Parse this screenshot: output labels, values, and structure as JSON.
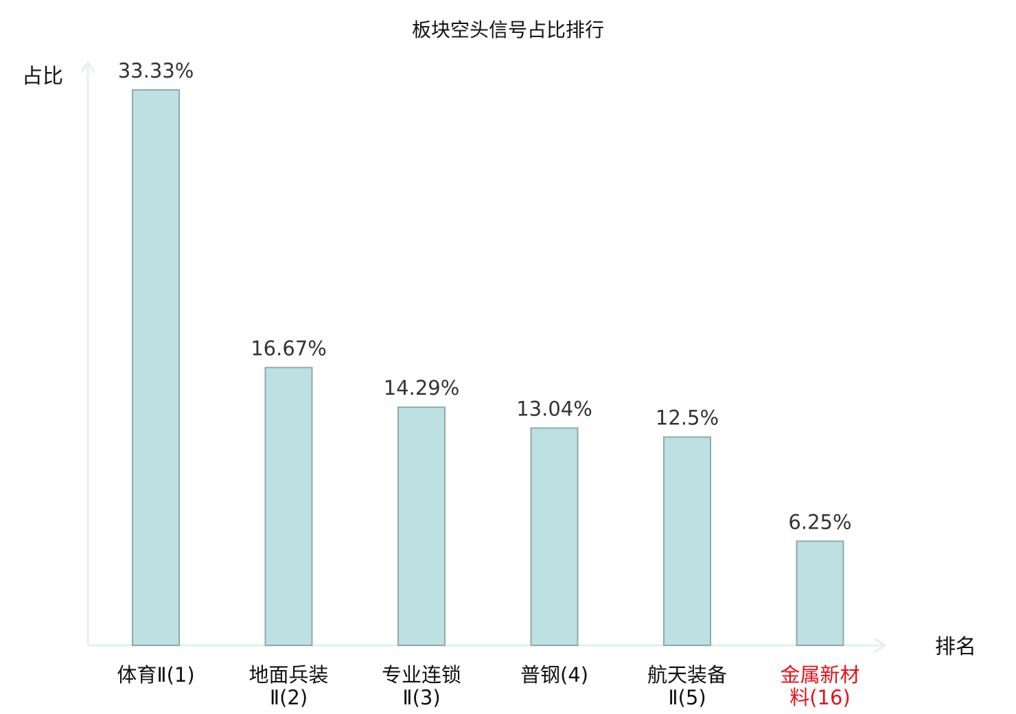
{
  "chart_data": {
    "type": "bar",
    "title": "板块空头信号占比排行",
    "ylabel": "占比",
    "xlabel": "排名",
    "categories": [
      {
        "lines": [
          "体育Ⅱ(1)"
        ],
        "highlight": false
      },
      {
        "lines": [
          "地面兵装",
          "Ⅱ(2)"
        ],
        "highlight": false
      },
      {
        "lines": [
          "专业连锁",
          "Ⅱ(3)"
        ],
        "highlight": false
      },
      {
        "lines": [
          "普钢(4)"
        ],
        "highlight": false
      },
      {
        "lines": [
          "航天装备",
          "Ⅱ(5)"
        ],
        "highlight": false
      },
      {
        "lines": [
          "金属新材",
          "料(16)"
        ],
        "highlight": true
      }
    ],
    "values": [
      33.33,
      16.67,
      14.29,
      13.04,
      12.5,
      6.25
    ],
    "value_labels": [
      "33.33%",
      "16.67%",
      "14.29%",
      "13.04%",
      "12.5%",
      "6.25%"
    ],
    "ylim": [
      0,
      35
    ],
    "grid": false,
    "legend": "none"
  },
  "colors": {
    "bar_fill": "#bde0e2",
    "bar_stroke": "#8fa9ac",
    "axis": "#e0f1ee",
    "text": "#111111",
    "value_text": "#333333",
    "highlight": "#e8101a"
  }
}
